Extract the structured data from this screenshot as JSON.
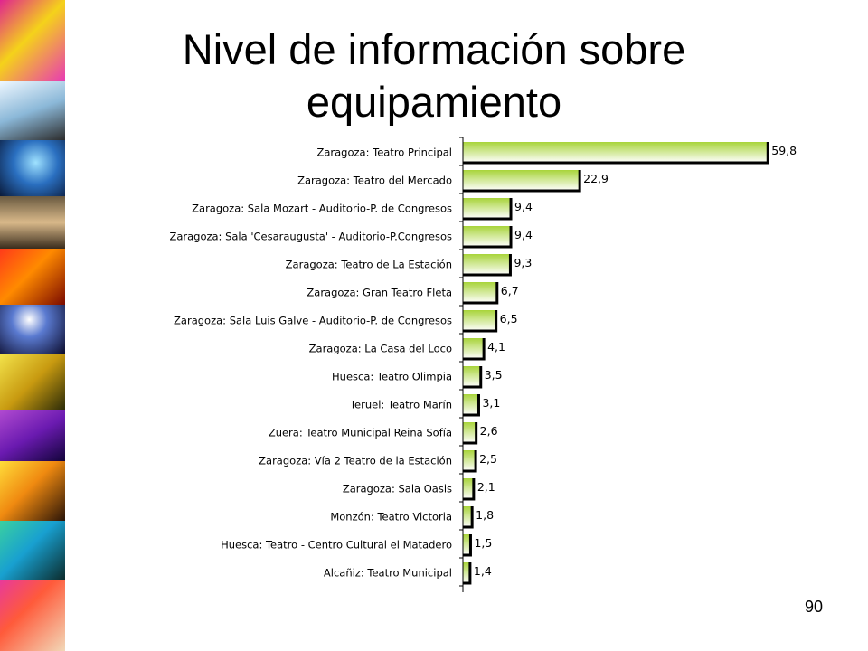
{
  "slide": {
    "title_line1": "Nivel de información sobre",
    "title_line2": "equipamiento",
    "page_number": "90"
  },
  "theme": {
    "bar_gradient_start": "#a8d43a",
    "bar_gradient_end": "#ffffff",
    "bar_shadow": "#000000"
  },
  "chart_data": {
    "type": "bar",
    "orientation": "horizontal",
    "categories": [
      "Zaragoza: Teatro Principal",
      "Zaragoza: Teatro del Mercado",
      "Zaragoza: Sala Mozart  - Auditorio-P. de Congresos",
      "Zaragoza: Sala 'Cesaraugusta'  - Auditorio-P.Congresos",
      "Zaragoza: Teatro de La Estación",
      "Zaragoza: Gran Teatro Fleta",
      "Zaragoza: Sala Luis Galve  - Auditorio-P. de Congresos",
      "Zaragoza: La Casa del Loco",
      "Huesca: Teatro Olimpia",
      "Teruel: Teatro Marín",
      "Zuera: Teatro Municipal Reina Sofía",
      "Zaragoza: Vía 2  Teatro de la Estación",
      "Zaragoza: Sala Oasis",
      "Monzón: Teatro Victoria",
      "Huesca: Teatro - Centro Cultural el Matadero",
      "Alcañiz: Teatro Municipal"
    ],
    "values": [
      59.8,
      22.9,
      9.4,
      9.4,
      9.3,
      6.7,
      6.5,
      4.1,
      3.5,
      3.1,
      2.6,
      2.5,
      2.1,
      1.8,
      1.5,
      1.4
    ],
    "value_labels": [
      "59,8",
      "22,9",
      "9,4",
      "9,4",
      "9,3",
      "6,7",
      "6,5",
      "4,1",
      "3,5",
      "3,1",
      "2,6",
      "2,5",
      "2,1",
      "1,8",
      "1,5",
      "1,4"
    ],
    "title": "",
    "xlabel": "",
    "ylabel": "",
    "xlim": [
      0,
      60
    ],
    "grid": false,
    "legend": "none"
  }
}
